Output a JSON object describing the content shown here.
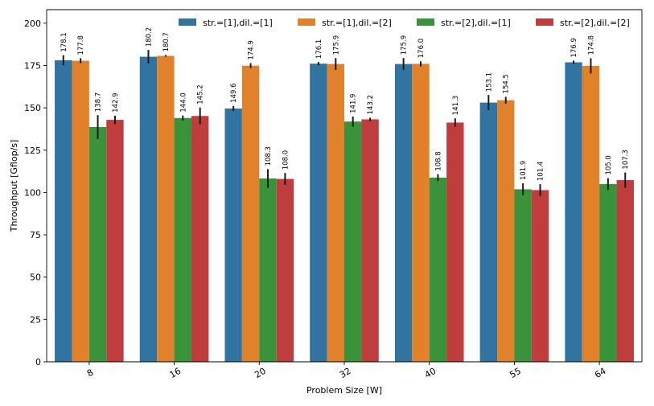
{
  "chart_data": {
    "type": "bar",
    "xlabel": "Problem Size [W]",
    "ylabel": "Throughput [Gflop/s]",
    "categories": [
      "8",
      "16",
      "20",
      "32",
      "40",
      "55",
      "64"
    ],
    "ylim": [
      0,
      208
    ],
    "yticks": [
      0,
      25,
      50,
      75,
      100,
      125,
      150,
      175,
      200
    ],
    "grid": false,
    "legend_position": "top",
    "series": [
      {
        "name": "str.=[1],dil.=[1]",
        "color": "#3274a1",
        "values": [
          178.1,
          180.2,
          149.6,
          176.1,
          175.9,
          153.1,
          176.9
        ],
        "labels": [
          "178.1",
          "180.2",
          "149.6",
          "176.1",
          "175.9",
          "153.1",
          "176.9"
        ],
        "errors": [
          3.0,
          4.0,
          1.5,
          1.0,
          3.5,
          4.5,
          1.0
        ]
      },
      {
        "name": "str.=[1],dil.=[2]",
        "color": "#e1812c",
        "values": [
          177.8,
          180.7,
          174.9,
          175.9,
          176.0,
          154.5,
          174.8
        ],
        "labels": [
          "177.8",
          "180.7",
          "174.9",
          "175.9",
          "176.0",
          "154.5",
          "174.8"
        ],
        "errors": [
          1.5,
          0.5,
          1.5,
          3.5,
          1.5,
          2.0,
          4.5
        ]
      },
      {
        "name": "str.=[2],dil.=[1]",
        "color": "#3a923a",
        "values": [
          138.7,
          144.0,
          108.3,
          141.9,
          108.8,
          101.9,
          105.0
        ],
        "labels": [
          "138.7",
          "144.0",
          "108.3",
          "141.9",
          "108.8",
          "101.9",
          "105.0"
        ],
        "errors": [
          7.0,
          1.5,
          5.5,
          3.0,
          2.0,
          3.5,
          3.5
        ]
      },
      {
        "name": "str.=[2],dil.=[2]",
        "color": "#c03d3e",
        "values": [
          142.9,
          145.2,
          108.0,
          143.2,
          141.3,
          101.4,
          107.3
        ],
        "labels": [
          "142.9",
          "145.2",
          "108.0",
          "143.2",
          "141.3",
          "101.4",
          "107.3"
        ],
        "errors": [
          2.5,
          5.0,
          3.5,
          1.0,
          2.5,
          3.5,
          4.5
        ]
      }
    ]
  }
}
